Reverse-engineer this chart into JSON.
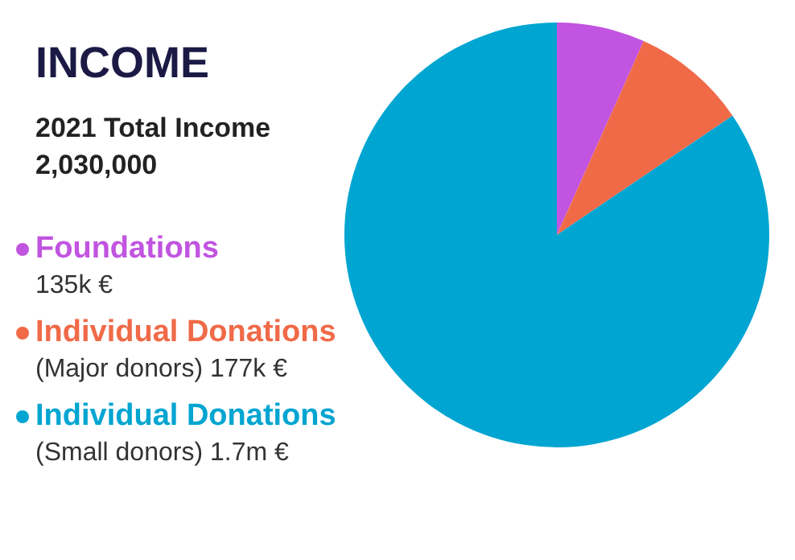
{
  "chart_data": {
    "type": "pie",
    "title": "INCOME",
    "subtitle": "2021 Total Income\n2,030,000",
    "categories": [
      "Foundations",
      "Individual Donations",
      "Individual Donations"
    ],
    "values": [
      135000,
      177000,
      1700000
    ],
    "value_labels": [
      "135k €",
      "(Major donors) 177k €",
      "(Small donors) 1.7m €"
    ],
    "colors": [
      "#c154e0",
      "#f06a48",
      "#00a5d1"
    ],
    "legend": "left"
  }
}
